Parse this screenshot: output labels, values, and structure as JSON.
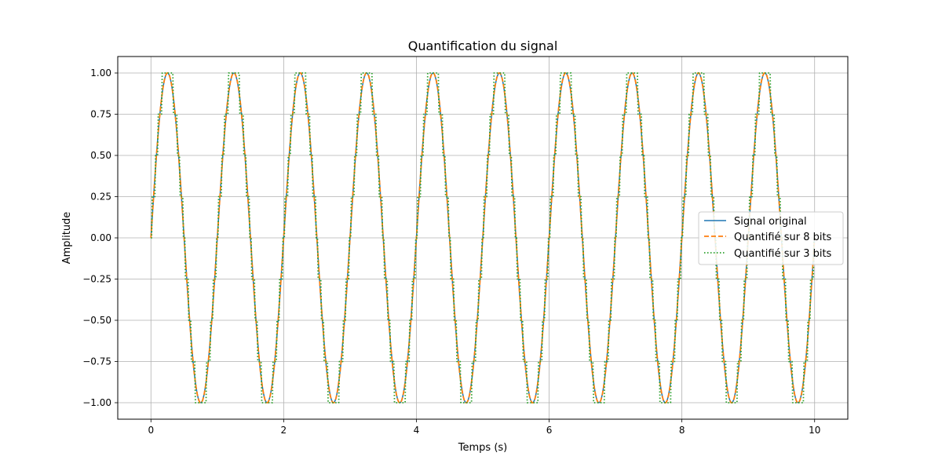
{
  "chart_data": {
    "type": "line",
    "title": "Quantification du signal",
    "xlabel": "Temps (s)",
    "ylabel": "Amplitude",
    "xlim": [
      -0.5,
      10.5
    ],
    "ylim": [
      -1.1,
      1.1
    ],
    "x_ticks": [
      0,
      2,
      4,
      6,
      8,
      10
    ],
    "x_tick_labels": [
      "0",
      "2",
      "4",
      "6",
      "8",
      "10"
    ],
    "y_ticks": [
      1.0,
      0.75,
      0.5,
      0.25,
      0.0,
      -0.25,
      -0.5,
      -0.75,
      -1.0
    ],
    "y_tick_labels": [
      "1.00",
      "0.75",
      "0.50",
      "0.25",
      "0.00",
      "−0.25",
      "−0.50",
      "−0.75",
      "−1.00"
    ],
    "grid": true,
    "legend_position": "center-right",
    "signal": {
      "function": "sin(2·pi·f·t)",
      "frequency_hz": 1,
      "amplitude": 1,
      "t_start": 0,
      "t_end": 10
    },
    "series": [
      {
        "name": "Signal original",
        "color": "#1f77b4",
        "style": "solid",
        "bits": null
      },
      {
        "name": "Quantifié sur 8 bits",
        "color": "#ff7f0e",
        "style": "dashed",
        "bits": 8
      },
      {
        "name": "Quantifié sur 3 bits",
        "color": "#2ca02c",
        "style": "dotted",
        "bits": 3
      }
    ]
  }
}
